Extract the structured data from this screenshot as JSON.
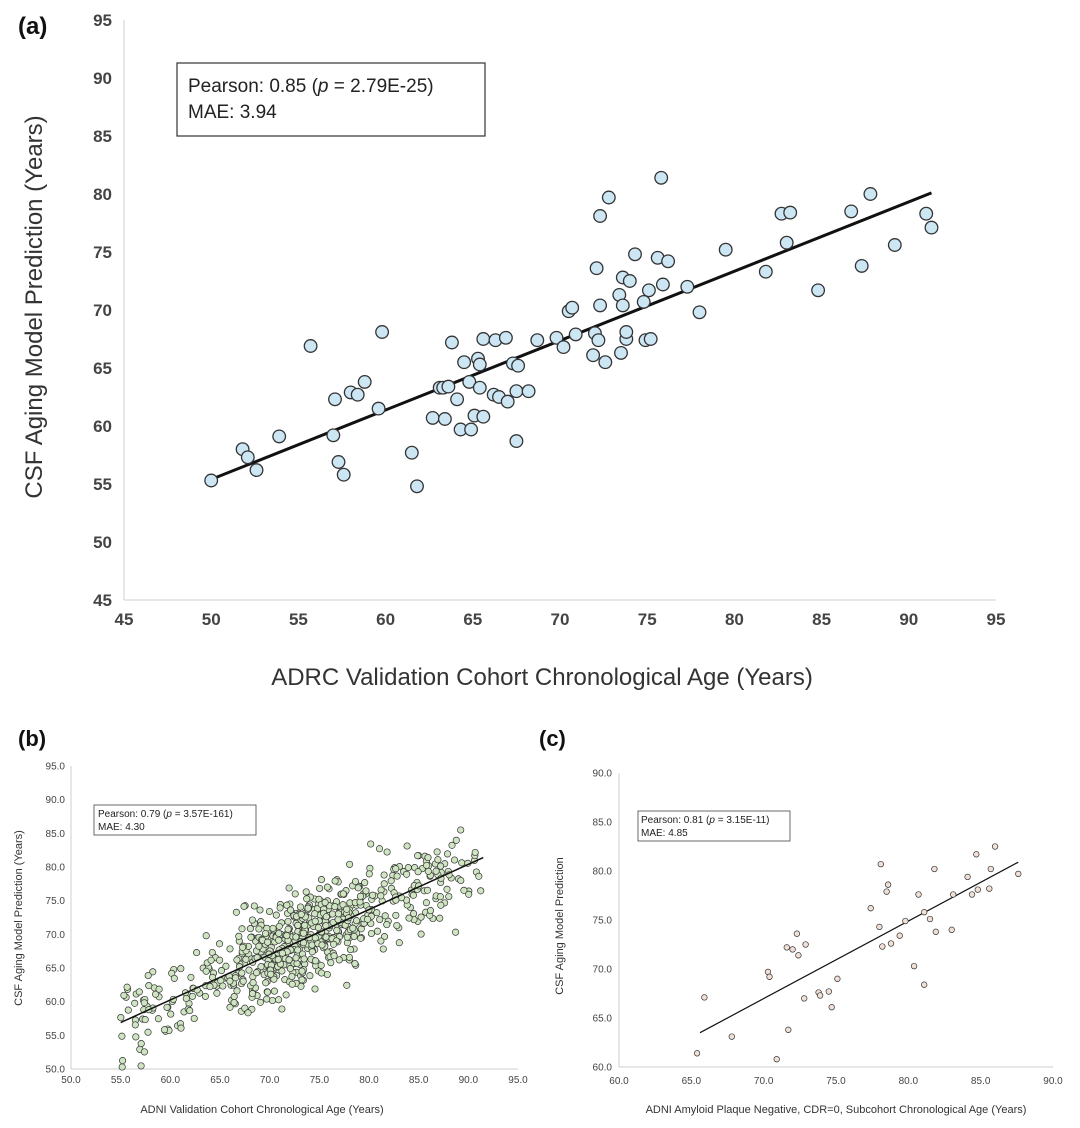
{
  "chart_data": [
    {
      "panel": "(a)",
      "type": "scatter",
      "xlabel": "ADRC Validation Cohort Chronological Age (Years)",
      "ylabel": "CSF Aging Model Prediction (Years)",
      "xlim": [
        45,
        95
      ],
      "ylim": [
        45,
        95
      ],
      "xticks": [
        "45",
        "50",
        "55",
        "60",
        "65",
        "70",
        "75",
        "80",
        "85",
        "90",
        "95"
      ],
      "yticks": [
        "45",
        "50",
        "55",
        "60",
        "65",
        "70",
        "75",
        "80",
        "85",
        "90",
        "95"
      ],
      "stats_line1_prefix": "Pearson: 0.85 (",
      "stats_p": "p",
      "stats_line1_suffix": " = 2.79E-25)",
      "stats_line2": "MAE: 3.94",
      "marker_fill": "#cce6f4",
      "fit": {
        "x": [
          50,
          91.3
        ],
        "y": [
          55.4,
          80.1
        ]
      },
      "points": [
        [
          50,
          55.3
        ],
        [
          51.8,
          58
        ],
        [
          52.1,
          57.3
        ],
        [
          52.6,
          56.2
        ],
        [
          53.9,
          59.1
        ],
        [
          55.7,
          66.9
        ],
        [
          57,
          59.2
        ],
        [
          57.1,
          62.3
        ],
        [
          57.3,
          56.9
        ],
        [
          57.6,
          55.8
        ],
        [
          58,
          62.9
        ],
        [
          58.4,
          62.7
        ],
        [
          58.8,
          63.8
        ],
        [
          59.6,
          61.5
        ],
        [
          59.8,
          68.1
        ],
        [
          61.5,
          57.7
        ],
        [
          61.8,
          54.8
        ],
        [
          62.7,
          60.7
        ],
        [
          63.1,
          63.3
        ],
        [
          63.3,
          63.3
        ],
        [
          63.4,
          60.6
        ],
        [
          63.6,
          63.4
        ],
        [
          63.8,
          67.2
        ],
        [
          64.1,
          62.3
        ],
        [
          64.3,
          59.7
        ],
        [
          64.5,
          65.5
        ],
        [
          64.8,
          63.8
        ],
        [
          64.9,
          59.7
        ],
        [
          65.1,
          60.9
        ],
        [
          65.3,
          65.8
        ],
        [
          65.4,
          65.3
        ],
        [
          65.4,
          63.3
        ],
        [
          65.6,
          67.5
        ],
        [
          65.6,
          60.8
        ],
        [
          66.2,
          62.7
        ],
        [
          66.3,
          67.4
        ],
        [
          66.5,
          62.5
        ],
        [
          66.9,
          67.6
        ],
        [
          67,
          62.1
        ],
        [
          67.3,
          65.4
        ],
        [
          67.5,
          63
        ],
        [
          67.5,
          58.7
        ],
        [
          67.6,
          65.2
        ],
        [
          68.2,
          63
        ],
        [
          68.7,
          67.4
        ],
        [
          69.8,
          67.6
        ],
        [
          70.2,
          66.8
        ],
        [
          70.5,
          69.9
        ],
        [
          70.7,
          70.2
        ],
        [
          70.9,
          67.9
        ],
        [
          71.9,
          66.1
        ],
        [
          72,
          68
        ],
        [
          72.1,
          73.6
        ],
        [
          72.2,
          67.4
        ],
        [
          72.3,
          78.1
        ],
        [
          72.3,
          70.4
        ],
        [
          72.6,
          65.5
        ],
        [
          72.8,
          79.7
        ],
        [
          73.4,
          71.3
        ],
        [
          73.5,
          66.3
        ],
        [
          73.6,
          72.8
        ],
        [
          73.6,
          70.4
        ],
        [
          73.8,
          67.5
        ],
        [
          73.8,
          68.1
        ],
        [
          74,
          72.5
        ],
        [
          74.3,
          74.8
        ],
        [
          74.8,
          70.7
        ],
        [
          74.9,
          67.4
        ],
        [
          75.1,
          71.7
        ],
        [
          75.2,
          67.5
        ],
        [
          75.6,
          74.5
        ],
        [
          75.8,
          81.4
        ],
        [
          75.9,
          72.2
        ],
        [
          76.2,
          74.2
        ],
        [
          77.3,
          72
        ],
        [
          78,
          69.8
        ],
        [
          79.5,
          75.2
        ],
        [
          81.8,
          73.3
        ],
        [
          82.7,
          78.3
        ],
        [
          83,
          75.8
        ],
        [
          83.2,
          78.4
        ],
        [
          84.8,
          71.7
        ],
        [
          86.7,
          78.5
        ],
        [
          87.3,
          73.8
        ],
        [
          87.8,
          80
        ],
        [
          89.2,
          75.6
        ],
        [
          91,
          78.3
        ],
        [
          91.3,
          77.1
        ]
      ]
    },
    {
      "panel": "(b)",
      "type": "scatter",
      "xlabel": "ADNI Validation Cohort Chronological Age (Years)",
      "ylabel": "CSF Aging Model Prediction (Years)",
      "xlim": [
        50,
        95
      ],
      "ylim": [
        50,
        95
      ],
      "xticks": [
        "50.0",
        "55.0",
        "60.0",
        "65.0",
        "70.0",
        "75.0",
        "80.0",
        "85.0",
        "90.0",
        "95.0"
      ],
      "yticks": [
        "50.0",
        "55.0",
        "60.0",
        "65.0",
        "70.0",
        "75.0",
        "80.0",
        "85.0",
        "90.0",
        "95.0"
      ],
      "stats_line1_prefix": "Pearson: 0.79 (",
      "stats_p": "p",
      "stats_line1_suffix": " = 3.57E-161)",
      "stats_line2": "MAE: 4.30",
      "marker_fill": "#cfe5c2",
      "fit": {
        "x": [
          55,
          91.5
        ],
        "y": [
          56.9,
          81.4
        ]
      },
      "point_count": 700,
      "points_note": "dense cloud approx. 700 points along fit line, residual spread about ±4.3 years, age range 55–91.5"
    },
    {
      "panel": "(c)",
      "type": "scatter",
      "xlabel": "ADNI Amyloid Plaque Negative, CDR=0, Subcohort Chronological Age (Years)",
      "ylabel": "CSF Aging Model Prediction",
      "xlim": [
        60,
        90
      ],
      "ylim": [
        60,
        90
      ],
      "xticks": [
        "60.0",
        "65.0",
        "70.0",
        "75.0",
        "80.0",
        "85.0",
        "90.0"
      ],
      "yticks": [
        "60.0",
        "65.0",
        "70.0",
        "75.0",
        "80.0",
        "85.0",
        "90.0"
      ],
      "stats_line1_prefix": "Pearson: 0.81 (",
      "stats_p": "p",
      "stats_line1_suffix": " = 3.15E-11)",
      "stats_line2": "MAE: 4.85",
      "marker_fill": "#f2e0d6",
      "fit": {
        "x": [
          65.6,
          87.6
        ],
        "y": [
          63.5,
          80.9
        ]
      },
      "points": [
        [
          65.4,
          61.4
        ],
        [
          65.9,
          67.1
        ],
        [
          67.8,
          63.1
        ],
        [
          70.3,
          69.7
        ],
        [
          70.4,
          69.2
        ],
        [
          70.9,
          60.8
        ],
        [
          71.6,
          72.2
        ],
        [
          71.7,
          63.8
        ],
        [
          72,
          72
        ],
        [
          72.3,
          73.6
        ],
        [
          72.4,
          71.4
        ],
        [
          72.8,
          67
        ],
        [
          72.9,
          72.5
        ],
        [
          73.8,
          67.6
        ],
        [
          73.9,
          67.3
        ],
        [
          74.5,
          67.7
        ],
        [
          74.7,
          66.1
        ],
        [
          75.1,
          69
        ],
        [
          77.4,
          76.2
        ],
        [
          78,
          74.3
        ],
        [
          78.1,
          80.7
        ],
        [
          78.2,
          72.3
        ],
        [
          78.5,
          77.9
        ],
        [
          78.6,
          78.6
        ],
        [
          78.8,
          72.6
        ],
        [
          79.4,
          73.4
        ],
        [
          79.8,
          74.9
        ],
        [
          80.4,
          70.3
        ],
        [
          80.7,
          77.6
        ],
        [
          81.1,
          68.4
        ],
        [
          81.1,
          75.8
        ],
        [
          81.5,
          75.1
        ],
        [
          81.8,
          80.2
        ],
        [
          81.9,
          73.8
        ],
        [
          83,
          74
        ],
        [
          83.1,
          77.6
        ],
        [
          84.1,
          79.4
        ],
        [
          84.4,
          77.6
        ],
        [
          84.7,
          81.7
        ],
        [
          84.8,
          78.1
        ],
        [
          85.6,
          78.2
        ],
        [
          85.7,
          80.2
        ],
        [
          86,
          82.5
        ],
        [
          87.6,
          79.7
        ]
      ]
    }
  ]
}
